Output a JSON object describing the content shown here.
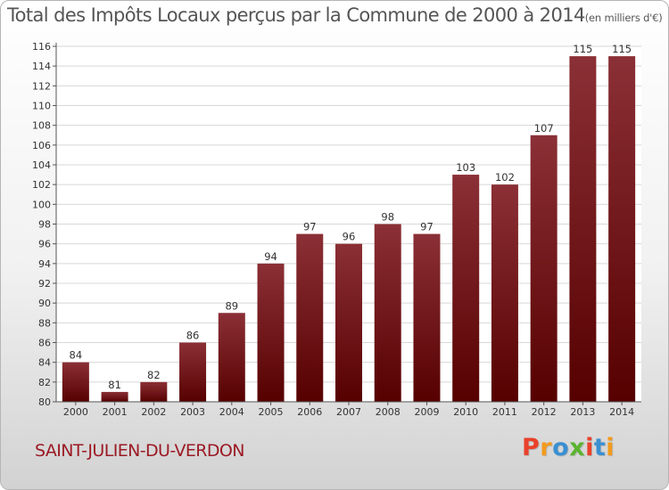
{
  "title": "Total des Impôts Locaux perçus par la Commune de 2000 à 2014",
  "title_unit": "(en milliers d'€)",
  "commune": "SAINT-JULIEN-DU-VERDON",
  "logo": {
    "letters": [
      "P",
      "r",
      "o",
      "x",
      "i",
      "t",
      "i"
    ],
    "colors": [
      "#e8412b",
      "#f29b1f",
      "#3a8fd1",
      "#5bb431",
      "#e8412b",
      "#3a8fd1",
      "#f29b1f"
    ]
  },
  "colors": {
    "bar_top": "#8b3036",
    "bar_bottom": "#560000",
    "grid": "#d8d8d8",
    "title": "#555555",
    "commune": "#9b1a24"
  },
  "chart_data": {
    "type": "bar",
    "title": "Total des Impôts Locaux perçus par la Commune de 2000 à 2014 (en milliers d'€)",
    "xlabel": "",
    "ylabel": "",
    "categories": [
      "2000",
      "2001",
      "2002",
      "2003",
      "2004",
      "2005",
      "2006",
      "2007",
      "2008",
      "2009",
      "2010",
      "2011",
      "2012",
      "2013",
      "2014"
    ],
    "values": [
      84,
      81,
      82,
      86,
      89,
      94,
      97,
      96,
      98,
      97,
      103,
      102,
      107,
      115,
      115
    ],
    "ylim": [
      80,
      116
    ],
    "yticks": [
      80,
      82,
      84,
      86,
      88,
      90,
      92,
      94,
      96,
      98,
      100,
      102,
      104,
      106,
      108,
      110,
      112,
      114,
      116
    ],
    "grid": true,
    "legend": "none"
  }
}
